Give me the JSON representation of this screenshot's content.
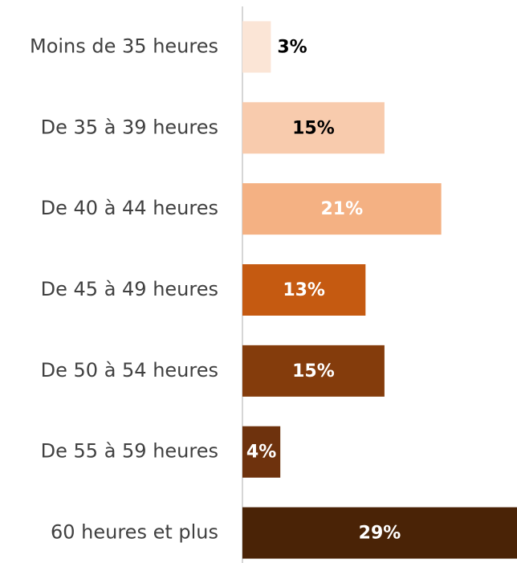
{
  "chart_data": {
    "type": "bar",
    "orientation": "horizontal",
    "categories": [
      "Moins de 35 heures",
      "De 35 à 39 heures",
      "De 40 à 44 heures",
      "De 45 à 49 heures",
      "De 50 à 54 heures",
      "De 55 à 59 heures",
      "60 heures et plus"
    ],
    "values": [
      3,
      15,
      21,
      13,
      15,
      4,
      29
    ],
    "value_labels": [
      "3%",
      "15%",
      "21%",
      "13%",
      "15%",
      "4%",
      "29%"
    ],
    "colors": [
      "#fbe5d6",
      "#f8cbad",
      "#f4b183",
      "#c55a11",
      "#843c0c",
      "#6e320d",
      "#4a2306"
    ],
    "value_label_colors": [
      "#000000",
      "#000000",
      "#ffffff",
      "#ffffff",
      "#ffffff",
      "#ffffff",
      "#ffffff"
    ],
    "xlim": [
      0,
      29
    ],
    "grid": false
  }
}
